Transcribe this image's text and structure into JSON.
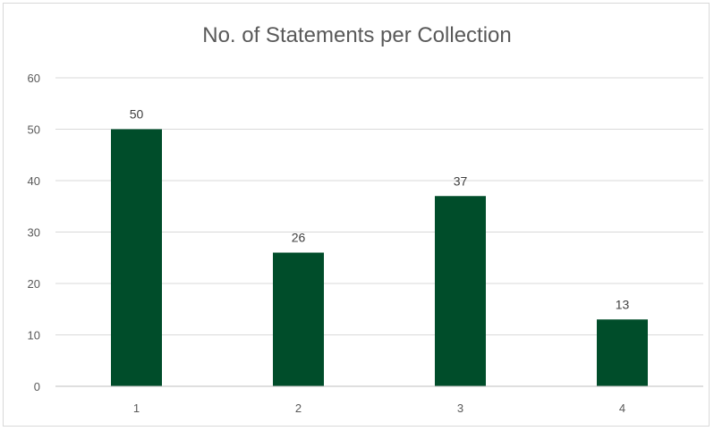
{
  "chart_data": {
    "type": "bar",
    "title": "No. of Statements per Collection",
    "xlabel": "",
    "ylabel": "",
    "categories": [
      "1",
      "2",
      "3",
      "4"
    ],
    "values": [
      50,
      26,
      37,
      13
    ],
    "ylim": [
      0,
      60
    ],
    "yticks": [
      0,
      10,
      20,
      30,
      40,
      50,
      60
    ],
    "grid": true,
    "legend": "none",
    "data_labels": true,
    "colors": {
      "bar": "#004d2a",
      "grid": "#d9d9d9",
      "axis": "#bfbfbf"
    }
  }
}
